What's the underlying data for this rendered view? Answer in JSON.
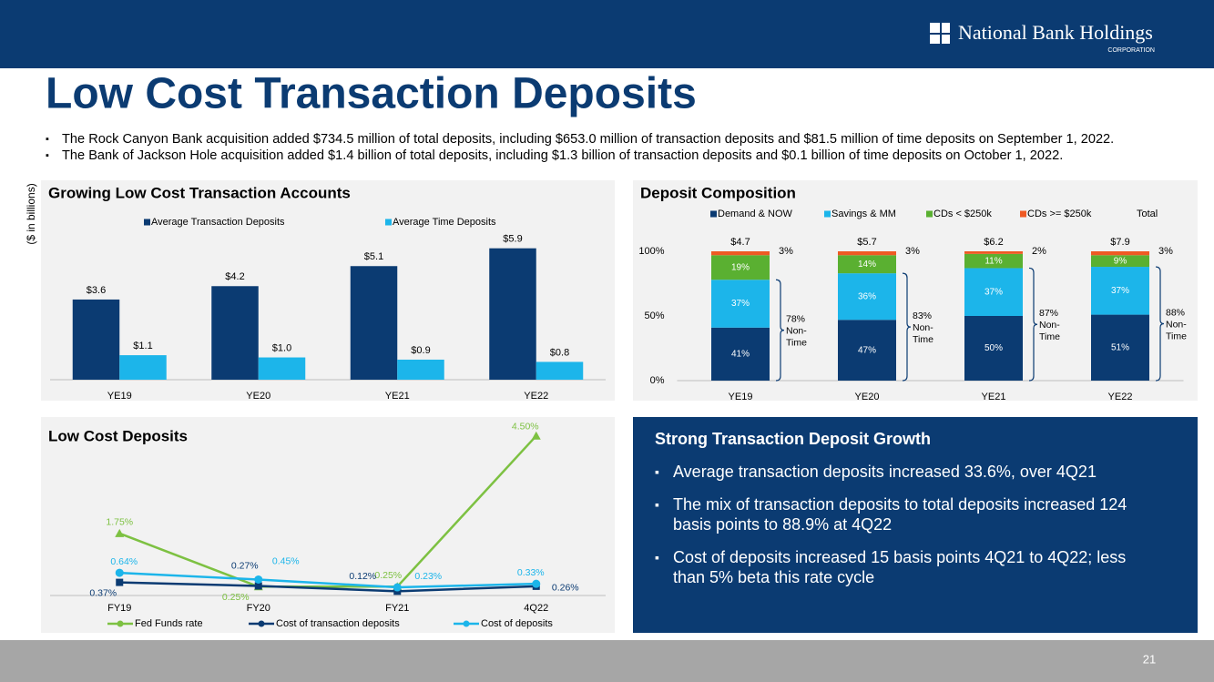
{
  "header": {
    "logo": "National Bank Holdings",
    "logo_sub": "CORPORATION",
    "title": "Low Cost Transaction Deposits"
  },
  "bullets": [
    "The Rock Canyon Bank acquisition added $734.5 million of total deposits, including $653.0 million of transaction deposits and $81.5 million of time deposits on September 1, 2022.",
    "The Bank of Jackson Hole acquisition added $1.4 billion of total deposits, including $1.3 billion of transaction deposits and $0.1 billion of time deposits on October 1, 2022."
  ],
  "unit_note": "($ in billions)",
  "chart_data": [
    {
      "type": "bar",
      "title": "Growing Low Cost Transaction Accounts",
      "categories": [
        "YE19",
        "YE20",
        "YE21",
        "YE22"
      ],
      "ylim": [
        0,
        6.5
      ],
      "series": [
        {
          "name": "Average Transaction Deposits",
          "color": "#0b3b72",
          "values": [
            3.6,
            4.2,
            5.1,
            5.9
          ],
          "value_labels": [
            "$3.6",
            "$4.2",
            "$5.1",
            "$5.9"
          ]
        },
        {
          "name": "Average Time Deposits",
          "color": "#1cb5ea",
          "values": [
            1.1,
            1.0,
            0.9,
            0.8
          ],
          "value_labels": [
            "$1.1",
            "$1.0",
            "$0.9",
            "$0.8"
          ]
        }
      ]
    },
    {
      "type": "stacked_bar",
      "title": "Deposit Composition",
      "categories": [
        "YE19",
        "YE20",
        "YE21",
        "YE22"
      ],
      "ylim": [
        0,
        100
      ],
      "yticks": [
        {
          "value": 0,
          "label": "0%"
        },
        {
          "value": 50,
          "label": "50%"
        },
        {
          "value": 100,
          "label": "100%"
        }
      ],
      "series": [
        {
          "name": "Demand & NOW",
          "color": "#0b3b72",
          "values": [
            41,
            47,
            50,
            51
          ],
          "value_labels": [
            "41%",
            "47%",
            "50%",
            "51%"
          ]
        },
        {
          "name": "Savings & MM",
          "color": "#1cb5ea",
          "values": [
            37,
            36,
            37,
            37
          ],
          "value_labels": [
            "37%",
            "36%",
            "37%",
            "37%"
          ]
        },
        {
          "name": "CDs < $250k",
          "color": "#5ab031",
          "values": [
            19,
            14,
            11,
            9
          ],
          "value_labels": [
            "19%",
            "14%",
            "11%",
            "9%"
          ]
        },
        {
          "name": "CDs >= $250k",
          "color": "#ef5a24",
          "values": [
            3,
            3,
            2,
            3
          ],
          "value_labels": [
            "3%",
            "3%",
            "2%",
            "3%"
          ]
        }
      ],
      "totals": {
        "name": "Total",
        "values": [
          4.7,
          5.7,
          6.2,
          7.9
        ],
        "value_labels": [
          "$4.7",
          "$5.7",
          "$6.2",
          "$7.9"
        ]
      },
      "non_time": {
        "values": [
          78,
          83,
          87,
          88
        ],
        "value_labels": [
          "78%",
          "83%",
          "87%",
          "88%"
        ],
        "label_lines": [
          "Non-",
          "Time"
        ]
      }
    },
    {
      "type": "line",
      "title": "Low Cost Deposits",
      "categories": [
        "FY19",
        "FY20",
        "FY21",
        "4Q22"
      ],
      "ylim": [
        0,
        4.8
      ],
      "series": [
        {
          "name": "Fed Funds rate",
          "color": "#7dc142",
          "marker": "triangle",
          "values": [
            1.75,
            0.25,
            0.25,
            4.5
          ],
          "value_labels": [
            "1.75%",
            "0.25%",
            "0.25%",
            "4.50%"
          ]
        },
        {
          "name": "Cost of transaction deposits",
          "color": "#0b3b72",
          "marker": "square",
          "values": [
            0.37,
            0.27,
            0.12,
            0.26
          ],
          "value_labels": [
            "0.37%",
            "0.27%",
            "0.12%",
            "0.26%"
          ]
        },
        {
          "name": "Cost of deposits",
          "color": "#1cb5ea",
          "marker": "circle",
          "values": [
            0.64,
            0.45,
            0.23,
            0.33
          ],
          "value_labels": [
            "0.64%",
            "0.45%",
            "0.23%",
            "0.33%"
          ]
        }
      ]
    }
  ],
  "highlight": {
    "title": "Strong Transaction Deposit Growth",
    "bullets": [
      "Average transaction deposits increased 33.6%, over 4Q21",
      "The mix of transaction deposits to total deposits increased 124 basis points to 88.9% at 4Q22",
      "Cost of deposits increased 15 basis points 4Q21 to 4Q22; less than 5% beta this rate cycle"
    ]
  },
  "page_number": 21
}
